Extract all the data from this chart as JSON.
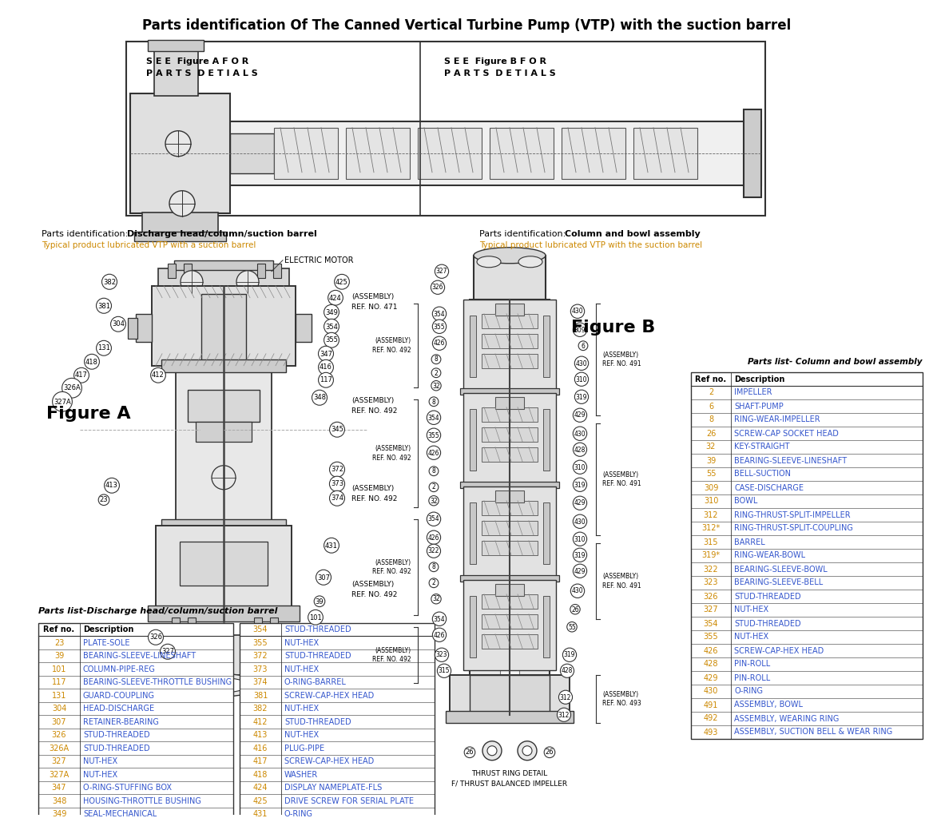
{
  "title": "Parts identification Of The Canned Vertical Turbine Pump (VTP) with the suction barrel",
  "title_fontsize": 12,
  "bg_color": "#ffffff",
  "top_box_left_text": "S E E  Figure A F O R\nP A R T S  D E T I A L S",
  "top_box_right_text": "S E E  Figure B F O R\nP A R T S  D E T I A L S",
  "fig_a_label": "Figure A",
  "fig_b_label": "Figure B",
  "left_section_title_normal": "Parts identification: ",
  "left_section_title_bold": "Discharge head/column/suction barrel",
  "left_section_subtitle": "Typical product lubricated VTP with a suction barrel",
  "right_section_title_normal": "Parts identification: ",
  "right_section_title_bold": "Column and bowl assembly",
  "right_section_subtitle": "Typical product lubricated VTP with the suction barrel",
  "parts_list_left_title": "Parts list-Discharge head/column/suction barrel",
  "parts_list_right_title": "Parts list- Column and bowl assembly",
  "parts_list_left_headers": [
    "Ref no.",
    "Description"
  ],
  "parts_list_left_col1": [
    [
      "23",
      "PLATE-SOLE"
    ],
    [
      "39",
      "BEARING-SLEEVE-LINESHAFT"
    ],
    [
      "101",
      "COLUMN-PIPE-REG"
    ],
    [
      "117",
      "BEARING-SLEEVE-THROTTLE BUSHING"
    ],
    [
      "131",
      "GUARD-COUPLING"
    ],
    [
      "304",
      "HEAD-DISCHARGE"
    ],
    [
      "307",
      "RETAINER-BEARING"
    ],
    [
      "326",
      "STUD-THREADED"
    ],
    [
      "326A",
      "STUD-THREADED"
    ],
    [
      "327",
      "NUT-HEX"
    ],
    [
      "327A",
      "NUT-HEX"
    ],
    [
      "347",
      "O-RING-STUFFING BOX"
    ],
    [
      "348",
      "HOUSING-THROTTLE BUSHING"
    ],
    [
      "349",
      "SEAL-MECHANICAL"
    ]
  ],
  "parts_list_left_col2": [
    [
      "354",
      "STUD-THREADED"
    ],
    [
      "355",
      "NUT-HEX"
    ],
    [
      "372",
      "STUD-THREADED"
    ],
    [
      "373",
      "NUT-HEX"
    ],
    [
      "374",
      "O-RING-BARREL"
    ],
    [
      "381",
      "SCREW-CAP-HEX HEAD"
    ],
    [
      "382",
      "NUT-HEX"
    ],
    [
      "412",
      "STUD-THREADED"
    ],
    [
      "413",
      "NUT-HEX"
    ],
    [
      "416",
      "PLUG-PIPE"
    ],
    [
      "417",
      "SCREW-CAP-HEX HEAD"
    ],
    [
      "418",
      "WASHER"
    ],
    [
      "424",
      "DISPLAY NAMEPLATE-FLS"
    ],
    [
      "425",
      "DRIVE SCREW FOR SERIAL PLATE"
    ],
    [
      "431",
      "O-RING"
    ]
  ],
  "parts_list_right_headers": [
    "Ref no.",
    "Description"
  ],
  "parts_list_right": [
    [
      "2",
      "IMPELLER"
    ],
    [
      "6",
      "SHAFT-PUMP"
    ],
    [
      "8",
      "RING-WEAR-IMPELLER"
    ],
    [
      "26",
      "SCREW-CAP SOCKET HEAD"
    ],
    [
      "32",
      "KEY-STRAIGHT"
    ],
    [
      "39",
      "BEARING-SLEEVE-LINESHAFT"
    ],
    [
      "55",
      "BELL-SUCTION"
    ],
    [
      "309",
      "CASE-DISCHARGE"
    ],
    [
      "310",
      "BOWL"
    ],
    [
      "312",
      "RING-THRUST-SPLIT-IMPELLER"
    ],
    [
      "312*",
      "RING-THRUST-SPLIT-COUPLING"
    ],
    [
      "315",
      "BARREL"
    ],
    [
      "319*",
      "RING-WEAR-BOWL"
    ],
    [
      "322",
      "BEARING-SLEEVE-BOWL"
    ],
    [
      "323",
      "BEARING-SLEEVE-BELL"
    ],
    [
      "326",
      "STUD-THREADED"
    ],
    [
      "327",
      "NUT-HEX"
    ],
    [
      "354",
      "STUD-THREADED"
    ],
    [
      "355",
      "NUT-HEX"
    ],
    [
      "426",
      "SCREW-CAP-HEX HEAD"
    ],
    [
      "428",
      "PIN-ROLL"
    ],
    [
      "429",
      "PIN-ROLL"
    ],
    [
      "430",
      "O-RING"
    ],
    [
      "491",
      "ASSEMBLY, BOWL"
    ],
    [
      "492",
      "ASSEMBLY, WEARING RING"
    ],
    [
      "493",
      "ASSEMBLY, SUCTION BELL & WEAR RING"
    ]
  ],
  "electric_motor_label": "ELECTRIC MOTOR",
  "thrust_ring_label": "THRUST RING DETAIL\nF/ THRUST BALANCED IMPELLER",
  "accent_color": "#cc8800",
  "ref_color": "#cc8800",
  "desc_color": "#3355cc",
  "black": "#000000",
  "gray_light": "#e8e8e8",
  "gray_mid": "#cccccc",
  "gray_dark": "#888888",
  "line_color": "#333333"
}
